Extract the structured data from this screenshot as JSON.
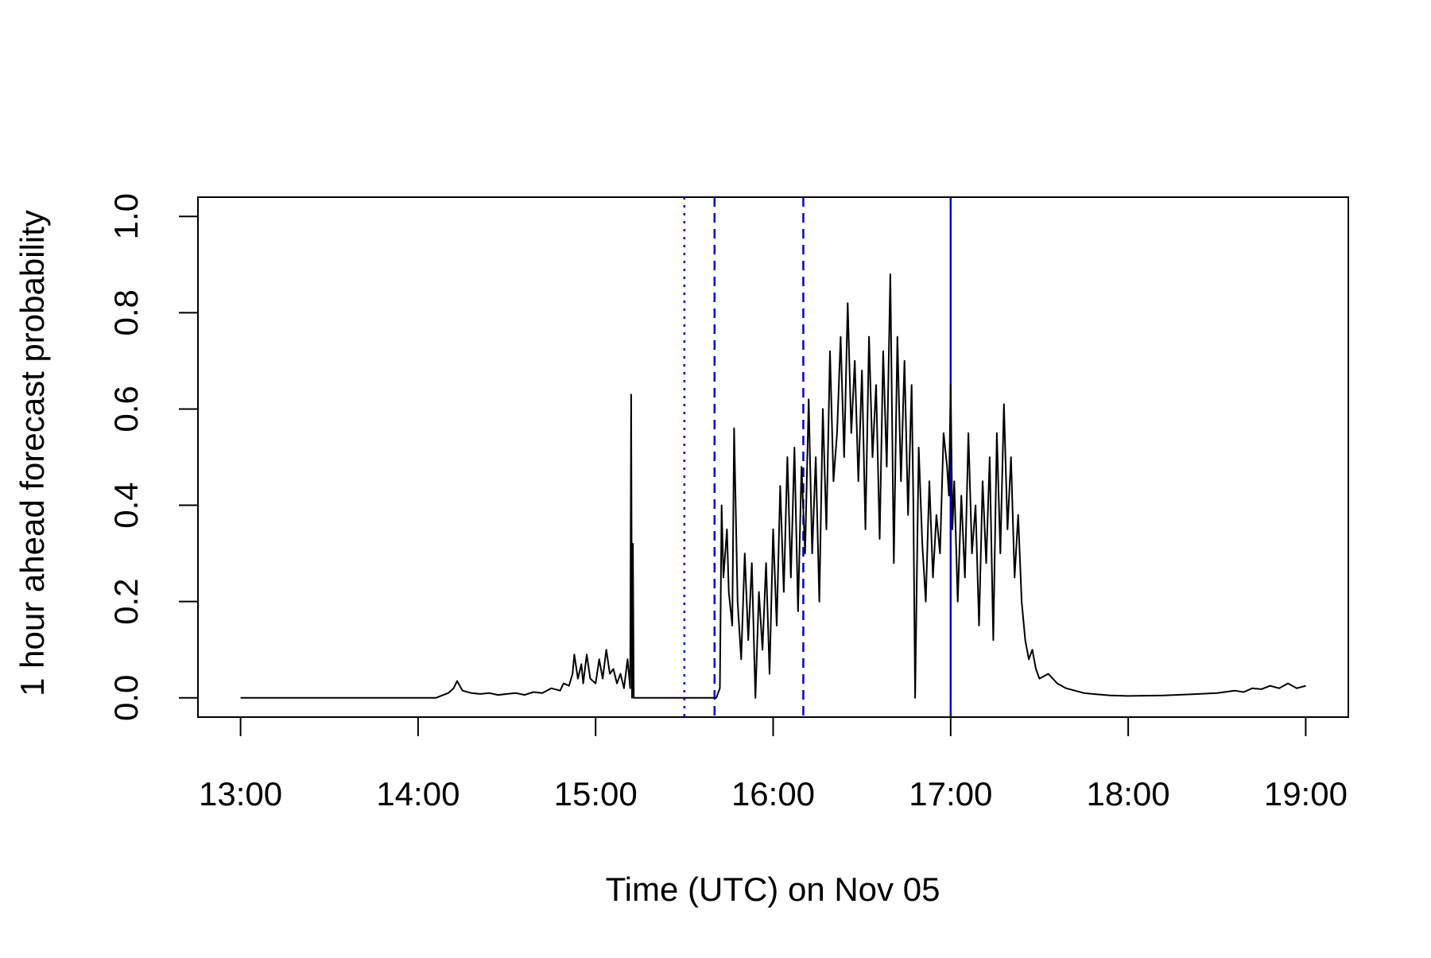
{
  "chart_data": {
    "type": "line",
    "title": "",
    "xlabel": "Time (UTC) on Nov 05",
    "ylabel": "1 hour ahead forecast probability",
    "x_unit": "hour of day (UTC)",
    "xlim": [
      12.76,
      19.24
    ],
    "ylim": [
      -0.04,
      1.04
    ],
    "x_ticks": [
      {
        "value": 13,
        "label": "13:00"
      },
      {
        "value": 14,
        "label": "14:00"
      },
      {
        "value": 15,
        "label": "15:00"
      },
      {
        "value": 16,
        "label": "16:00"
      },
      {
        "value": 17,
        "label": "17:00"
      },
      {
        "value": 18,
        "label": "18:00"
      },
      {
        "value": 19,
        "label": "19:00"
      }
    ],
    "y_ticks": [
      {
        "value": 0.0,
        "label": "0.0"
      },
      {
        "value": 0.2,
        "label": "0.2"
      },
      {
        "value": 0.4,
        "label": "0.4"
      },
      {
        "value": 0.6,
        "label": "0.6"
      },
      {
        "value": 0.8,
        "label": "0.8"
      },
      {
        "value": 1.0,
        "label": "1.0"
      }
    ],
    "grid": false,
    "series": [
      {
        "color": "#000000",
        "x": [
          13.0,
          14.1,
          14.17,
          14.2,
          14.22,
          14.25,
          14.3,
          14.35,
          14.4,
          14.45,
          14.5,
          14.55,
          14.6,
          14.65,
          14.7,
          14.75,
          14.8,
          14.82,
          14.85,
          14.87,
          14.88,
          14.9,
          14.92,
          14.93,
          14.95,
          14.97,
          15.0,
          15.02,
          15.04,
          15.06,
          15.08,
          15.1,
          15.12,
          15.14,
          15.16,
          15.18,
          15.195,
          15.2,
          15.205,
          15.21,
          15.215,
          15.22,
          15.5,
          15.68,
          15.7,
          15.71,
          15.72,
          15.74,
          15.75,
          15.77,
          15.78,
          15.8,
          15.82,
          15.84,
          15.86,
          15.88,
          15.9,
          15.92,
          15.94,
          15.96,
          15.98,
          16.0,
          16.02,
          16.04,
          16.06,
          16.08,
          16.1,
          16.12,
          16.14,
          16.16,
          16.18,
          16.2,
          16.22,
          16.24,
          16.26,
          16.28,
          16.3,
          16.32,
          16.34,
          16.36,
          16.38,
          16.4,
          16.42,
          16.44,
          16.46,
          16.48,
          16.5,
          16.52,
          16.54,
          16.56,
          16.58,
          16.6,
          16.62,
          16.64,
          16.66,
          16.68,
          16.7,
          16.72,
          16.74,
          16.76,
          16.78,
          16.79,
          16.8,
          16.82,
          16.84,
          16.86,
          16.88,
          16.9,
          16.92,
          16.94,
          16.96,
          16.98,
          16.99,
          17.0,
          17.01,
          17.02,
          17.04,
          17.06,
          17.08,
          17.1,
          17.12,
          17.14,
          17.16,
          17.18,
          17.2,
          17.22,
          17.24,
          17.26,
          17.28,
          17.3,
          17.32,
          17.34,
          17.36,
          17.38,
          17.4,
          17.42,
          17.44,
          17.46,
          17.48,
          17.5,
          17.55,
          17.6,
          17.65,
          17.7,
          17.75,
          17.8,
          17.9,
          18.0,
          18.2,
          18.4,
          18.5,
          18.6,
          18.65,
          18.7,
          18.75,
          18.8,
          18.85,
          18.9,
          18.95,
          19.0
        ],
        "y": [
          0.0,
          0.0,
          0.01,
          0.02,
          0.035,
          0.015,
          0.01,
          0.008,
          0.01,
          0.006,
          0.008,
          0.01,
          0.006,
          0.012,
          0.01,
          0.02,
          0.015,
          0.03,
          0.025,
          0.05,
          0.09,
          0.04,
          0.07,
          0.03,
          0.09,
          0.04,
          0.03,
          0.08,
          0.04,
          0.1,
          0.05,
          0.06,
          0.03,
          0.05,
          0.02,
          0.08,
          0.02,
          0.63,
          0.0,
          0.32,
          0.0,
          0.0,
          0.0,
          0.0,
          0.02,
          0.4,
          0.25,
          0.35,
          0.22,
          0.15,
          0.56,
          0.2,
          0.08,
          0.3,
          0.12,
          0.28,
          0.0,
          0.22,
          0.1,
          0.28,
          0.05,
          0.35,
          0.15,
          0.44,
          0.22,
          0.5,
          0.25,
          0.52,
          0.18,
          0.48,
          0.3,
          0.62,
          0.3,
          0.5,
          0.2,
          0.6,
          0.35,
          0.72,
          0.45,
          0.55,
          0.75,
          0.5,
          0.82,
          0.55,
          0.7,
          0.45,
          0.68,
          0.35,
          0.75,
          0.5,
          0.65,
          0.33,
          0.72,
          0.48,
          0.88,
          0.28,
          0.75,
          0.45,
          0.7,
          0.38,
          0.65,
          0.4,
          0.0,
          0.52,
          0.32,
          0.2,
          0.45,
          0.25,
          0.38,
          0.3,
          0.55,
          0.48,
          0.42,
          0.65,
          0.35,
          0.45,
          0.2,
          0.42,
          0.25,
          0.55,
          0.3,
          0.4,
          0.15,
          0.45,
          0.28,
          0.5,
          0.12,
          0.55,
          0.3,
          0.61,
          0.35,
          0.5,
          0.25,
          0.38,
          0.2,
          0.12,
          0.08,
          0.1,
          0.06,
          0.04,
          0.05,
          0.03,
          0.02,
          0.015,
          0.01,
          0.008,
          0.005,
          0.004,
          0.005,
          0.008,
          0.01,
          0.015,
          0.012,
          0.02,
          0.018,
          0.025,
          0.02,
          0.03,
          0.02,
          0.025
        ]
      }
    ],
    "reference_lines": [
      {
        "x": 15.5,
        "color": "#0000cc",
        "style": "dotted"
      },
      {
        "x": 15.67,
        "color": "#0000cc",
        "style": "dashed"
      },
      {
        "x": 16.17,
        "color": "#0000cc",
        "style": "dashed"
      },
      {
        "x": 17.0,
        "color": "#0000cc",
        "style": "solid"
      }
    ]
  }
}
